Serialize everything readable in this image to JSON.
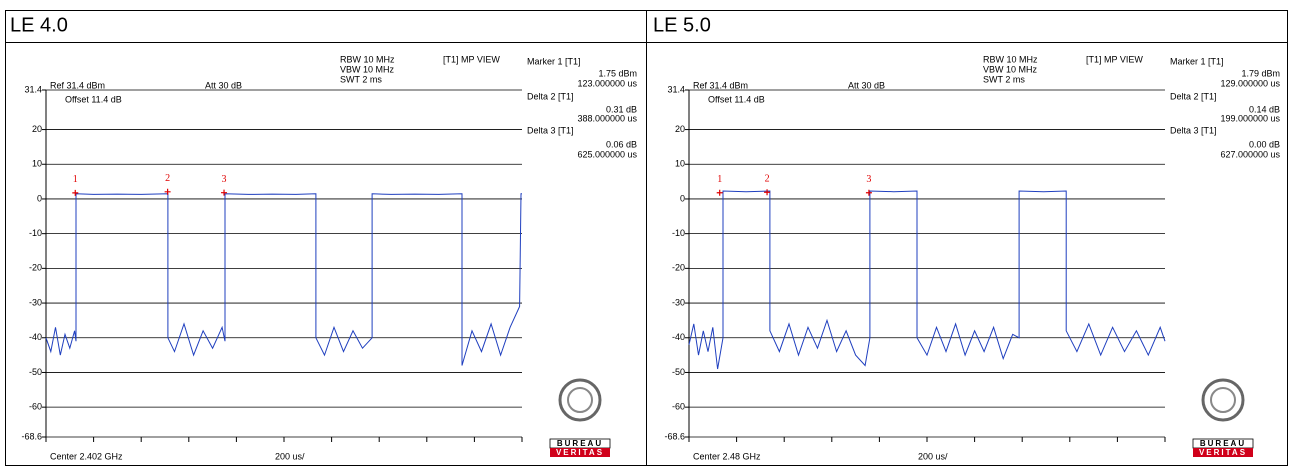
{
  "chart_data": [
    {
      "type": "line",
      "title": "LE 4.0",
      "color": "#1f3fbf",
      "marker_color": "#e00000",
      "xlim": [
        0,
        2000
      ],
      "xticks": [
        0,
        200,
        400,
        600,
        800,
        1000,
        1200,
        1400,
        1600,
        1800,
        2000
      ],
      "ylim": [
        -68.6,
        31.4
      ],
      "yticks": [
        31.4,
        20,
        10,
        0,
        -10,
        -20,
        -30,
        -40,
        -50,
        -60,
        -68.6
      ],
      "grid": true,
      "header": [
        "RBW 10 MHz",
        "VBW 10 MHz",
        "SWT 2 ms",
        "[T1] MP VIEW",
        "Ref 31.4 dBm",
        "Att 30 dB",
        "Offset 11.4 dB"
      ],
      "footer": [
        "Center 2.402 GHz",
        "200 us/"
      ],
      "readout": [
        "Marker 1 [T1]",
        "1.75 dBm",
        "123.000000 us",
        "Delta 2 [T1]",
        "0.31 dB",
        "388.000000 us",
        "Delta 3 [T1]",
        "0.06 dB",
        "625.000000 us"
      ],
      "markers": [
        {
          "label": "1",
          "x": 123,
          "y": 1.75
        },
        {
          "label": "2",
          "x": 511,
          "y": 2.06
        },
        {
          "label": "3",
          "x": 748,
          "y": 1.81
        }
      ],
      "logo": [
        "BUREAU",
        "VERITAS"
      ],
      "x": [
        0,
        20,
        40,
        60,
        80,
        100,
        120,
        126,
        126,
        200,
        300,
        400,
        512,
        512,
        540,
        580,
        620,
        660,
        700,
        740,
        752,
        752,
        850,
        950,
        1050,
        1134,
        1134,
        1170,
        1210,
        1250,
        1290,
        1330,
        1370,
        1370,
        1450,
        1550,
        1650,
        1748,
        1748,
        1790,
        1830,
        1870,
        1910,
        1950,
        1990,
        1996,
        2000
      ],
      "values": [
        -40,
        -44,
        -37,
        -45,
        -39,
        -43,
        -38,
        -41,
        1.5,
        1.3,
        1.4,
        1.3,
        1.5,
        -40,
        -44,
        -36,
        -45,
        -38,
        -43,
        -37,
        -41,
        1.5,
        1.3,
        1.4,
        1.3,
        1.5,
        -40,
        -45,
        -37,
        -44,
        -38,
        -43,
        -40,
        1.5,
        1.3,
        1.4,
        1.3,
        1.5,
        -48,
        -38,
        -44,
        -36,
        -45,
        -37,
        -31,
        1.5,
        1.5
      ]
    },
    {
      "type": "line",
      "title": "LE 5.0",
      "color": "#1f3fbf",
      "marker_color": "#e00000",
      "xlim": [
        0,
        2000
      ],
      "xticks": [
        0,
        200,
        400,
        600,
        800,
        1000,
        1200,
        1400,
        1600,
        1800,
        2000
      ],
      "ylim": [
        -68.6,
        31.4
      ],
      "yticks": [
        31.4,
        20,
        10,
        0,
        -10,
        -20,
        -30,
        -40,
        -50,
        -60,
        -68.6
      ],
      "grid": true,
      "header": [
        "RBW 10 MHz",
        "VBW 10 MHz",
        "SWT 2 ms",
        "[T1] MP VIEW",
        "Ref 31.4 dBm",
        "Att 30 dB",
        "Offset 11.4 dB"
      ],
      "footer": [
        "Center 2.48 GHz",
        "200 us/"
      ],
      "readout": [
        "Marker 1 [T1]",
        "1.79 dBm",
        "129.000000 us",
        "Delta 2 [T1]",
        "0.14 dB",
        "199.000000 us",
        "Delta 3 [T1]",
        "0.00 dB",
        "627.000000 us"
      ],
      "markers": [
        {
          "label": "1",
          "x": 129,
          "y": 1.79
        },
        {
          "label": "2",
          "x": 328,
          "y": 1.93
        },
        {
          "label": "3",
          "x": 756,
          "y": 1.79
        }
      ],
      "logo": [
        "BUREAU",
        "VERITAS"
      ],
      "x": [
        0,
        20,
        40,
        60,
        80,
        100,
        120,
        143,
        143,
        240,
        340,
        340,
        380,
        420,
        460,
        500,
        540,
        580,
        620,
        660,
        700,
        740,
        760,
        760,
        860,
        958,
        958,
        1000,
        1040,
        1080,
        1120,
        1160,
        1200,
        1240,
        1280,
        1320,
        1360,
        1387,
        1387,
        1490,
        1585,
        1585,
        1630,
        1680,
        1730,
        1780,
        1830,
        1880,
        1930,
        1980,
        2000
      ],
      "values": [
        -42,
        -36,
        -45,
        -38,
        -44,
        -37,
        -49,
        -40,
        2.3,
        2.1,
        2.3,
        -38,
        -44,
        -36,
        -45,
        -37,
        -43,
        -35,
        -44,
        -38,
        -45,
        -48,
        -40,
        2.3,
        2.1,
        2.3,
        -40,
        -45,
        -37,
        -44,
        -36,
        -45,
        -38,
        -44,
        -37,
        -46,
        -39,
        -40,
        2.3,
        2.1,
        2.3,
        -38,
        -44,
        -36,
        -45,
        -37,
        -44,
        -38,
        -45,
        -37,
        -41
      ]
    }
  ]
}
